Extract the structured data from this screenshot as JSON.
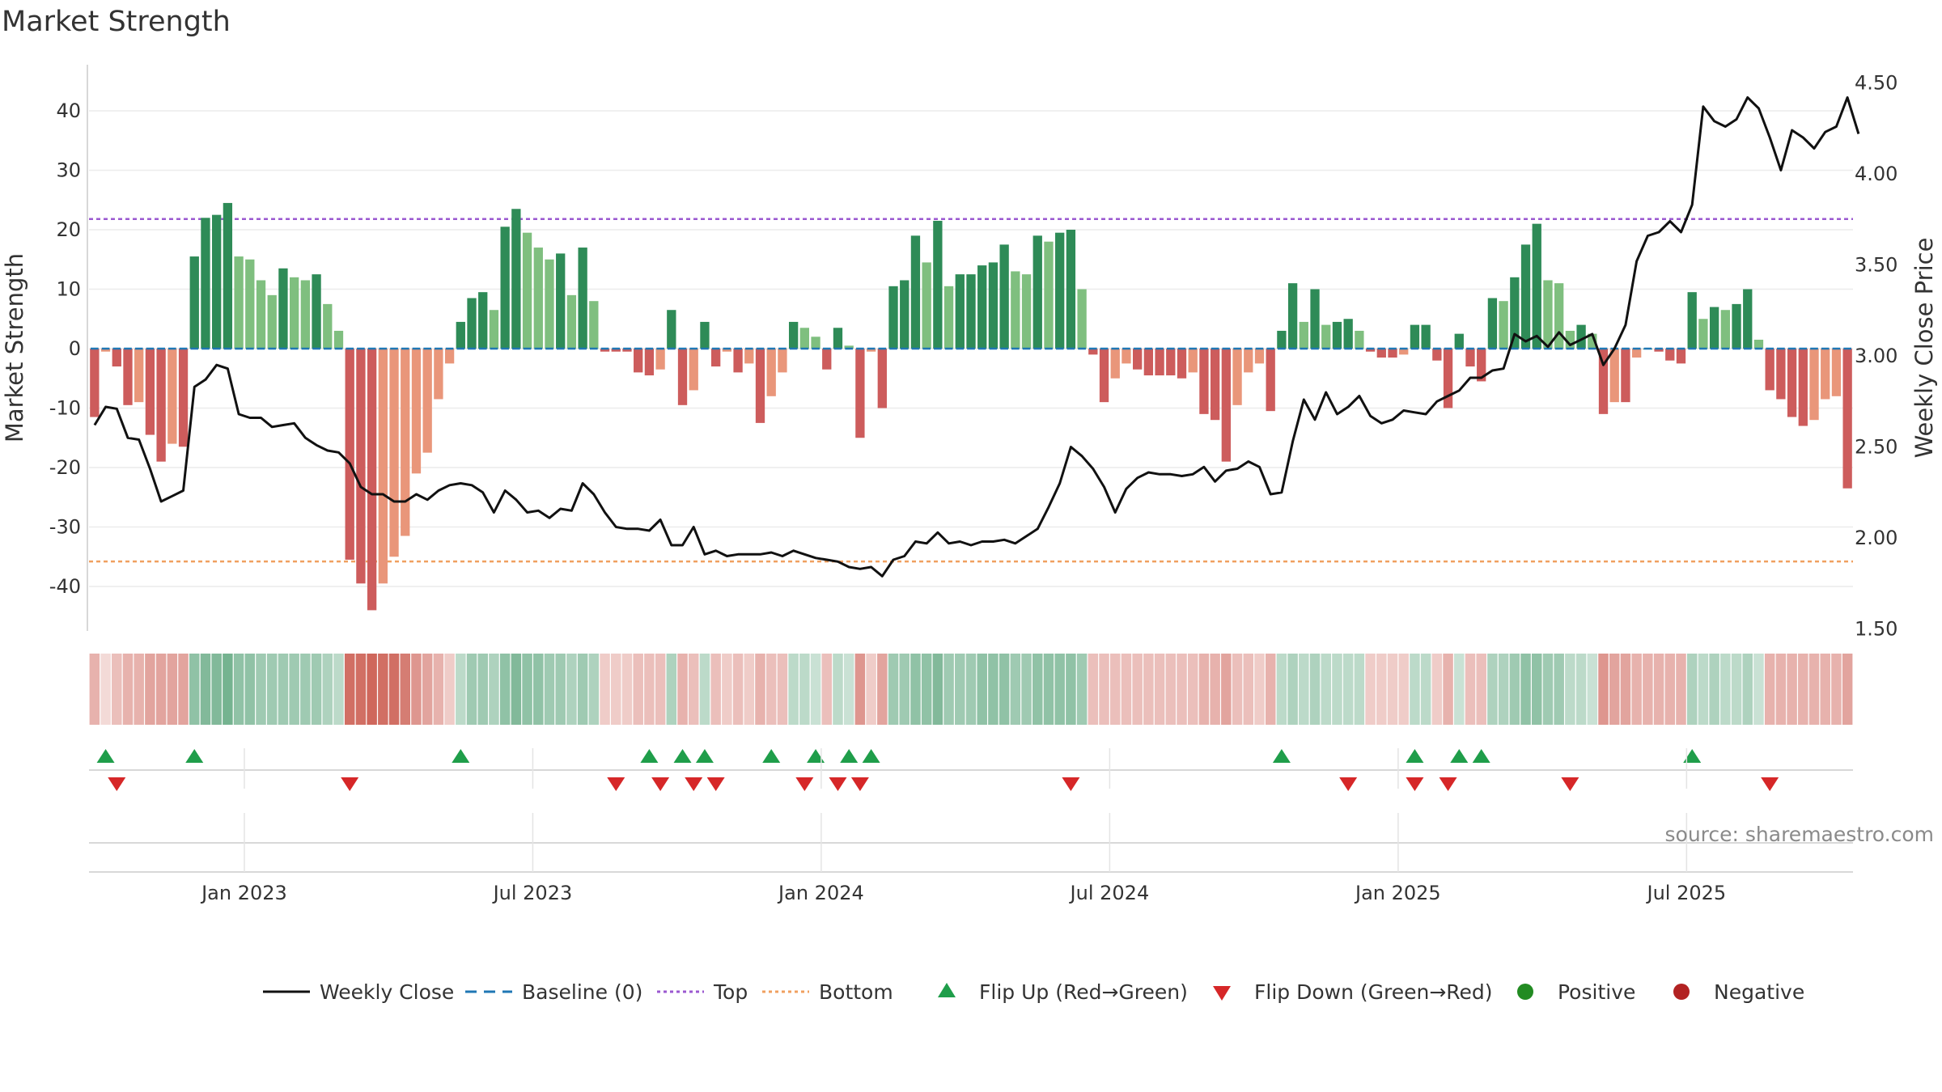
{
  "chart_data": {
    "type": "bar",
    "title": "Market Strength",
    "ylabel": "Market Strength",
    "y2label": "Weekly Close Price",
    "ylim": [
      -47,
      48
    ],
    "y2lim": [
      1.5,
      4.5
    ],
    "yticks": [
      40,
      30,
      20,
      10,
      0,
      -10,
      -20,
      -30,
      -40
    ],
    "y2ticks": [
      "4.50",
      "4.00",
      "3.50",
      "3.00",
      "2.50",
      "2.00",
      "1.50"
    ],
    "xticks": [
      "Jan 2023",
      "Jul 2023",
      "Jan 2024",
      "Jul 2024",
      "Jan 2025",
      "Jul 2025"
    ],
    "grid": true,
    "legend_position": "bottom",
    "top_threshold": 21.8,
    "bottom_threshold": -35.8,
    "source": "source: sharemaestro.com",
    "series": [
      {
        "name": "Market Strength",
        "kind": "bar",
        "values": [
          -11.5,
          -0.5,
          -3,
          -9.5,
          -9,
          -14.5,
          -19,
          -16,
          -16.5,
          15.5,
          22,
          22.5,
          24.5,
          15.5,
          15,
          11.5,
          9,
          13.5,
          12,
          11.5,
          12.5,
          7.5,
          3,
          -35.5,
          -39.5,
          -44,
          -39.5,
          -35,
          -31.5,
          -21,
          -17.5,
          -8.5,
          -2.5,
          4.5,
          8.5,
          9.5,
          6.5,
          20.5,
          23.5,
          19.5,
          17,
          15,
          16,
          9,
          17,
          8,
          -0.5,
          -0.5,
          -0.5,
          -4,
          -4.5,
          -3.5,
          6.5,
          -9.5,
          -7,
          4.5,
          -3,
          -0.5,
          -4,
          -2.5,
          -12.5,
          -8,
          -4,
          4.5,
          3.5,
          2,
          -3.5,
          3.5,
          0.5,
          -15,
          -0.5,
          -10,
          10.5,
          11.5,
          19,
          14.5,
          21.5,
          10.5,
          12.5,
          12.5,
          14,
          14.5,
          17.5,
          13,
          12.5,
          19,
          18,
          19.5,
          20,
          10,
          -1,
          -9,
          -5,
          -2.5,
          -3.5,
          -4.5,
          -4.5,
          -4.5,
          -5,
          -4,
          -11,
          -12,
          -19,
          -9.5,
          -4,
          -2.5,
          -10.5,
          3,
          11,
          4.5,
          10,
          4,
          4.5,
          5,
          3,
          -0.5,
          -1.5,
          -1.5,
          -1,
          4,
          4,
          -2,
          -10,
          2.5,
          -3,
          -5.5,
          8.5,
          8,
          12,
          17.5,
          21,
          11.5,
          11,
          3,
          4,
          2.5,
          -11,
          -9,
          -9,
          -1.5,
          0,
          -0.5,
          -2,
          -2.5,
          9.5,
          5,
          7,
          6.5,
          7.5,
          10,
          1.5,
          -7,
          -8.5,
          -11.5,
          -13,
          -12,
          -8.5,
          -8,
          -23.5
        ]
      },
      {
        "name": "Weekly Close",
        "kind": "line",
        "values": [
          2.62,
          2.72,
          2.71,
          2.55,
          2.54,
          2.38,
          2.2,
          2.23,
          2.26,
          2.83,
          2.87,
          2.95,
          2.93,
          2.68,
          2.66,
          2.66,
          2.61,
          2.62,
          2.63,
          2.55,
          2.51,
          2.48,
          2.47,
          2.41,
          2.28,
          2.24,
          2.24,
          2.2,
          2.2,
          2.24,
          2.21,
          2.26,
          2.29,
          2.3,
          2.29,
          2.25,
          2.14,
          2.26,
          2.21,
          2.14,
          2.15,
          2.11,
          2.16,
          2.15,
          2.3,
          2.24,
          2.14,
          2.06,
          2.05,
          2.05,
          2.04,
          2.1,
          1.96,
          1.96,
          2.06,
          1.91,
          1.93,
          1.9,
          1.91,
          1.91,
          1.91,
          1.92,
          1.9,
          1.93,
          1.91,
          1.89,
          1.88,
          1.87,
          1.84,
          1.83,
          1.84,
          1.79,
          1.88,
          1.9,
          1.98,
          1.97,
          2.03,
          1.97,
          1.98,
          1.96,
          1.98,
          1.98,
          1.99,
          1.97,
          2.01,
          2.05,
          2.17,
          2.3,
          2.5,
          2.45,
          2.38,
          2.28,
          2.14,
          2.27,
          2.33,
          2.36,
          2.35,
          2.35,
          2.34,
          2.35,
          2.39,
          2.31,
          2.37,
          2.38,
          2.42,
          2.39,
          2.24,
          2.25,
          2.53,
          2.76,
          2.65,
          2.8,
          2.68,
          2.72,
          2.78,
          2.67,
          2.63,
          2.65,
          2.7,
          2.69,
          2.68,
          2.75,
          2.78,
          2.81,
          2.88,
          2.88,
          2.92,
          2.93,
          3.12,
          3.08,
          3.11,
          3.05,
          3.13,
          3.06,
          3.09,
          3.12,
          2.95,
          3.04,
          3.17,
          3.52,
          3.66,
          3.68,
          3.74,
          3.68,
          3.83,
          4.37,
          4.29,
          4.26,
          4.3,
          4.42,
          4.36,
          4.2,
          4.02,
          4.24,
          4.2,
          4.14,
          4.23,
          4.26,
          4.42,
          4.22
        ]
      }
    ],
    "regime_strip": {
      "positive_color": "#2e8b57",
      "negative_color": "#c0392b",
      "values": [
        -0.4,
        -0.1,
        -0.3,
        -0.4,
        -0.4,
        -0.5,
        -0.5,
        -0.5,
        -0.5,
        0.6,
        0.7,
        0.7,
        0.8,
        0.6,
        0.6,
        0.5,
        0.5,
        0.5,
        0.5,
        0.5,
        0.5,
        0.4,
        0.3,
        -0.9,
        -0.9,
        -0.95,
        -0.9,
        -0.9,
        -0.8,
        -0.6,
        -0.5,
        -0.4,
        -0.2,
        0.3,
        0.5,
        0.5,
        0.4,
        0.6,
        0.7,
        0.6,
        0.6,
        0.5,
        0.5,
        0.4,
        0.5,
        0.4,
        -0.2,
        -0.2,
        -0.2,
        -0.3,
        -0.3,
        -0.3,
        0.4,
        -0.4,
        -0.3,
        0.3,
        -0.3,
        -0.2,
        -0.3,
        -0.2,
        -0.4,
        -0.3,
        -0.3,
        0.3,
        0.3,
        0.2,
        -0.3,
        0.3,
        0.2,
        -0.6,
        -0.2,
        -0.5,
        0.5,
        0.5,
        0.6,
        0.6,
        0.7,
        0.5,
        0.5,
        0.5,
        0.6,
        0.6,
        0.6,
        0.5,
        0.5,
        0.6,
        0.6,
        0.6,
        0.6,
        0.5,
        -0.3,
        -0.3,
        -0.3,
        -0.3,
        -0.3,
        -0.3,
        -0.3,
        -0.3,
        -0.3,
        -0.3,
        -0.4,
        -0.4,
        -0.5,
        -0.3,
        -0.3,
        -0.2,
        -0.4,
        0.3,
        0.4,
        0.3,
        0.4,
        0.3,
        0.3,
        0.3,
        0.3,
        -0.2,
        -0.2,
        -0.2,
        -0.2,
        0.3,
        0.3,
        -0.2,
        -0.4,
        0.2,
        -0.3,
        -0.3,
        0.4,
        0.4,
        0.5,
        0.6,
        0.6,
        0.5,
        0.5,
        0.3,
        0.3,
        0.2,
        -0.6,
        -0.5,
        -0.5,
        -0.4,
        -0.4,
        -0.4,
        -0.4,
        -0.4,
        0.4,
        0.3,
        0.4,
        0.3,
        0.3,
        0.4,
        0.2,
        -0.4,
        -0.4,
        -0.4,
        -0.4,
        -0.4,
        -0.4,
        -0.4,
        -0.5
      ]
    },
    "flip_up_weeks": [
      1,
      9,
      33,
      50,
      53,
      55,
      61,
      65,
      68,
      70,
      107,
      119,
      123,
      125,
      144
    ],
    "flip_down_weeks": [
      2,
      23,
      47,
      51,
      54,
      56,
      64,
      67,
      69,
      88,
      113,
      119,
      122,
      133,
      151
    ]
  },
  "legend": [
    {
      "key": "weekly_close",
      "label": "Weekly Close",
      "color": "#111111",
      "symbol": "line"
    },
    {
      "key": "baseline",
      "label": "Baseline (0)",
      "color": "#1f77b4",
      "symbol": "dash"
    },
    {
      "key": "top",
      "label": "Top",
      "color": "#9b59d0",
      "symbol": "dot"
    },
    {
      "key": "bottom",
      "label": "Bottom",
      "color": "#f0a060",
      "symbol": "dot"
    },
    {
      "key": "flip_up",
      "label": "Flip Up (Red→Green)",
      "color": "#1f9e4a",
      "symbol": "triangle-up"
    },
    {
      "key": "flip_down",
      "label": "Flip Down (Green→Red)",
      "color": "#d62728",
      "symbol": "triangle-down"
    },
    {
      "key": "positive",
      "label": "Positive",
      "color": "#228b22",
      "symbol": "circle"
    },
    {
      "key": "negative",
      "label": "Negative",
      "color": "#b22222",
      "symbol": "circle"
    }
  ]
}
